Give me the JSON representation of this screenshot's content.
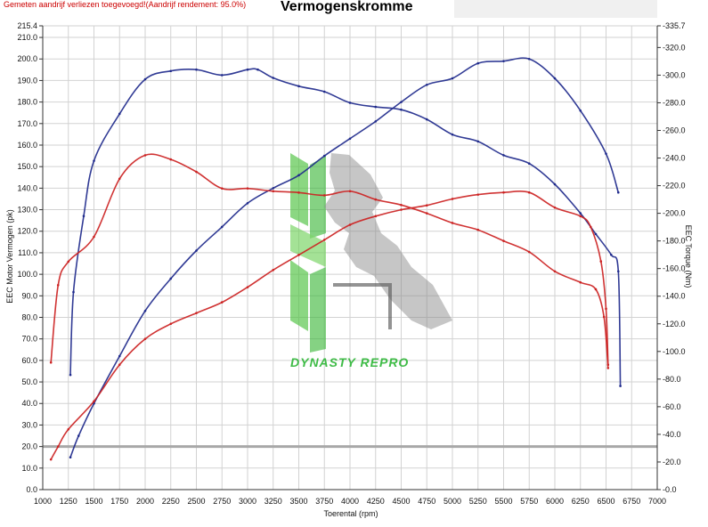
{
  "header": {
    "note": "Gemeten aandrijf verliezen toegevoegd!(Aandrijf rendement: 95.0%)",
    "title": "Vermogenskromme"
  },
  "watermark": {
    "text": "DYNASTY REPRO"
  },
  "chart_data": {
    "type": "line",
    "title": "Vermogenskromme",
    "xlabel": "Toerental (rpm)",
    "ylabel_left": "EEC Motor Vermogen (pk)",
    "ylabel_right": "EEC Torque (Nm)",
    "xlim": [
      1000,
      7000
    ],
    "ylim_left": [
      0,
      215.4
    ],
    "ylim_right": [
      0,
      335.7
    ],
    "grid": true,
    "x_ticks": [
      1000,
      1250,
      1500,
      1750,
      2000,
      2250,
      2500,
      2750,
      3000,
      3250,
      3500,
      3750,
      4000,
      4250,
      4500,
      4750,
      5000,
      5250,
      5500,
      5750,
      6000,
      6250,
      6500,
      6750,
      7000
    ],
    "y_left_ticks": [
      "0.0",
      "10.0",
      "20.0",
      "30.0",
      "40.0",
      "50.0",
      "60.0",
      "70.0",
      "80.0",
      "90.0",
      "100.0",
      "110.0",
      "120.0",
      "130.0",
      "140.0",
      "150.0",
      "160.0",
      "170.0",
      "180.0",
      "190.0",
      "200.0",
      "210.0",
      "215.4"
    ],
    "y_right_ticks": [
      "0.0",
      "20.0",
      "40.0",
      "60.0",
      "80.0",
      "100.0",
      "120.0",
      "140.0",
      "160.0",
      "180.0",
      "200.0",
      "220.0",
      "240.0",
      "260.0",
      "280.0",
      "300.0",
      "320.0",
      "335.7"
    ],
    "reference_line_left": 20,
    "series": [
      {
        "color": "#1f2a8c",
        "axis": "left",
        "x": [
          1270,
          1350,
          1500,
          1750,
          2000,
          2250,
          2500,
          2750,
          3000,
          3250,
          3500,
          3750,
          4000,
          4250,
          4500,
          4750,
          5000,
          5250,
          5500,
          5750,
          6000,
          6250,
          6500,
          6620
        ],
        "y": [
          15,
          25,
          40,
          62,
          83,
          98,
          111,
          122,
          133,
          140,
          146,
          155,
          163,
          171,
          180,
          188,
          191,
          198,
          199,
          200,
          191,
          176,
          156,
          138
        ]
      },
      {
        "color": "#1f2a8c",
        "axis": "right",
        "x": [
          1270,
          1300,
          1400,
          1500,
          1750,
          2000,
          2250,
          2500,
          2750,
          3000,
          3100,
          3250,
          3500,
          3750,
          4000,
          4250,
          4500,
          4750,
          5000,
          5250,
          5500,
          5750,
          6000,
          6250,
          6400,
          6550,
          6620,
          6640
        ],
        "y": [
          83,
          143,
          198,
          238,
          272,
          297,
          303,
          304,
          300,
          304,
          304,
          298,
          292,
          288,
          280,
          277,
          275,
          268,
          257,
          252,
          242,
          236,
          221,
          200,
          185,
          170,
          158,
          75
        ]
      },
      {
        "color": "#cc2222",
        "axis": "left",
        "x": [
          1080,
          1150,
          1250,
          1500,
          1750,
          2000,
          2250,
          2500,
          2750,
          3000,
          3250,
          3500,
          3750,
          4000,
          4250,
          4500,
          4750,
          5000,
          5250,
          5500,
          5750,
          6000,
          6250,
          6350,
          6450,
          6500,
          6520
        ],
        "y": [
          14,
          20,
          28,
          41,
          58,
          70,
          77,
          82,
          87,
          94,
          102,
          109,
          116,
          123,
          127,
          130,
          132,
          135,
          137,
          138,
          138,
          131,
          127,
          122,
          106,
          84,
          58
        ]
      },
      {
        "color": "#cc2222",
        "axis": "right",
        "x": [
          1080,
          1150,
          1250,
          1500,
          1750,
          2000,
          2250,
          2500,
          2750,
          3000,
          3250,
          3500,
          3750,
          4000,
          4250,
          4500,
          4750,
          5000,
          5250,
          5500,
          5750,
          6000,
          6250,
          6400,
          6480,
          6520
        ],
        "y": [
          92,
          148,
          165,
          183,
          225,
          242,
          239,
          230,
          218,
          218,
          216,
          215,
          213,
          216,
          210,
          206,
          200,
          193,
          188,
          180,
          172,
          158,
          150,
          145,
          125,
          88
        ]
      }
    ]
  }
}
